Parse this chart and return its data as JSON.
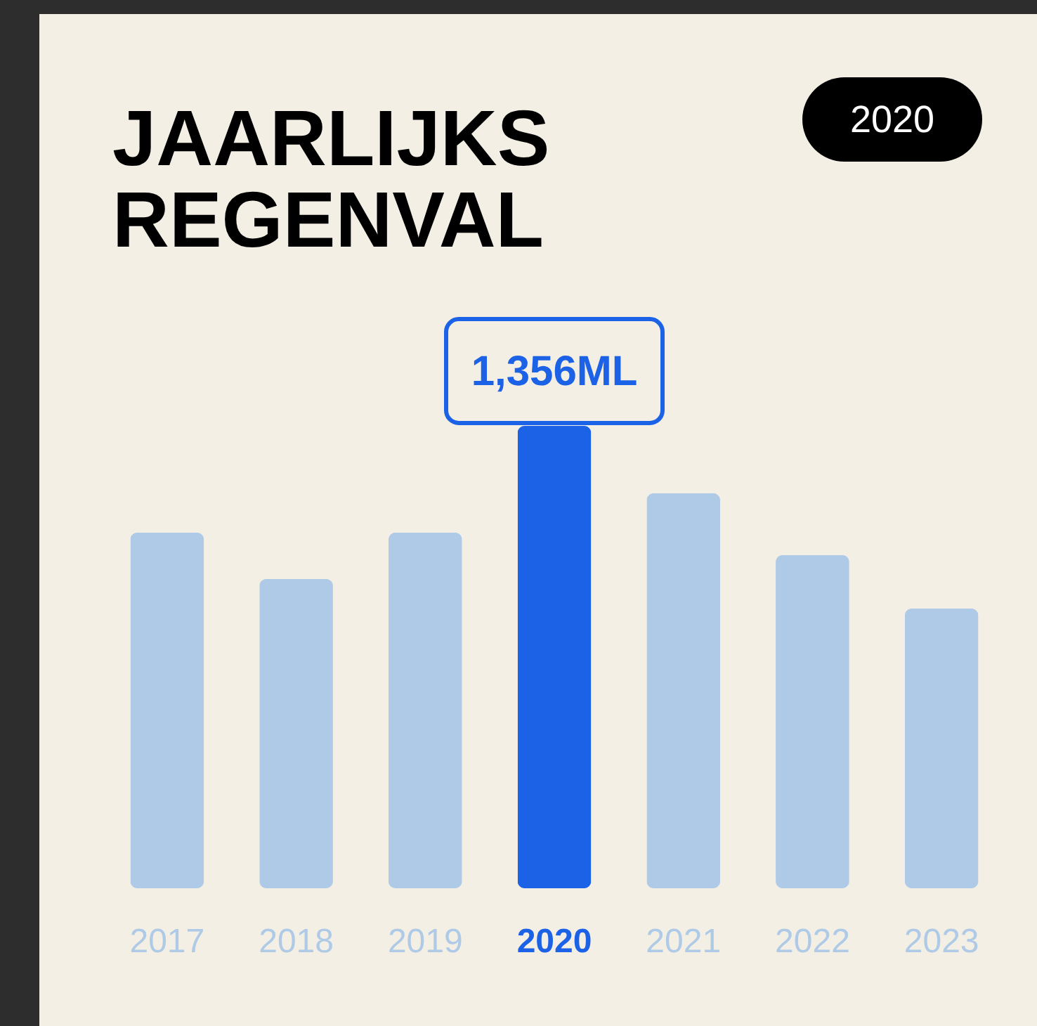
{
  "chart_data": {
    "type": "bar",
    "title": "JAARLIJKS REGENVAL",
    "annotations": [
      "2020"
    ],
    "categories": [
      "2017",
      "2018",
      "2019",
      "2020",
      "2021",
      "2022",
      "2023"
    ],
    "values": [
      1043,
      907,
      1043,
      1356,
      1158,
      977,
      820
    ],
    "colors": [
      "#aecae6",
      "#aecae6",
      "#aecae6",
      "#1c62e6",
      "#aecae6",
      "#aecae6",
      "#aecae6"
    ],
    "value_labels": [
      null,
      null,
      null,
      "1,356ML",
      null,
      null,
      null
    ],
    "tick_labels": "x"
  }
}
